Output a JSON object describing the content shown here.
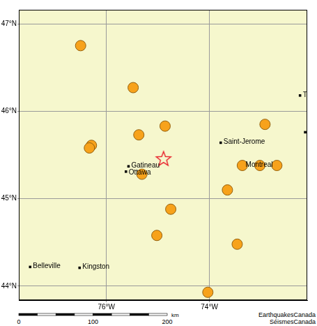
{
  "chart_data": {
    "type": "scatter",
    "xlim": [
      -77.7,
      -72.1
    ],
    "ylim": [
      43.84,
      47.16
    ],
    "xticks": [
      {
        "value": -76,
        "label": "76°W"
      },
      {
        "value": -74,
        "label": "74°W"
      }
    ],
    "yticks": [
      {
        "value": 44,
        "label": "44°N"
      },
      {
        "value": 45,
        "label": "45°N"
      },
      {
        "value": 46,
        "label": "46°N"
      },
      {
        "value": 47,
        "label": "47°N"
      }
    ],
    "grid": true,
    "series": [
      {
        "marker": "circle",
        "color": "#f7a21b",
        "x": [
          -76.5,
          -75.48,
          -74.86,
          -75.37,
          -76.29,
          -76.33,
          -75.31,
          -72.92,
          -73.36,
          -73.02,
          -72.69,
          -73.65,
          -74.75,
          -75.02,
          -73.46,
          -74.03
        ],
        "y": [
          46.75,
          46.27,
          45.83,
          45.73,
          45.61,
          45.58,
          45.28,
          45.85,
          45.38,
          45.38,
          45.38,
          45.1,
          44.88,
          44.58,
          44.48,
          43.93
        ]
      },
      {
        "marker": "star",
        "color": "#e8202a",
        "x": [
          -74.89
        ],
        "y": [
          45.46
        ]
      },
      {
        "marker": "square",
        "color": "#000000",
        "x": [
          -75.57,
          -75.62,
          -73.78,
          -73.35,
          -77.48,
          -76.52,
          -72.24,
          -72.14
        ],
        "y": [
          45.37,
          45.31,
          45.64,
          45.38,
          44.22,
          44.21,
          46.18,
          45.76
        ],
        "point_labels": [
          "Gatineau",
          "Ottawa",
          "Saint-Jerome",
          "Montreal",
          "Belleville",
          "Kingston",
          "T",
          null
        ]
      }
    ],
    "scale_bar": {
      "ticks": [
        0,
        100,
        200
      ],
      "unit": "km"
    },
    "credit": [
      "EarthquakesCanada",
      "SéismesCanada"
    ]
  }
}
